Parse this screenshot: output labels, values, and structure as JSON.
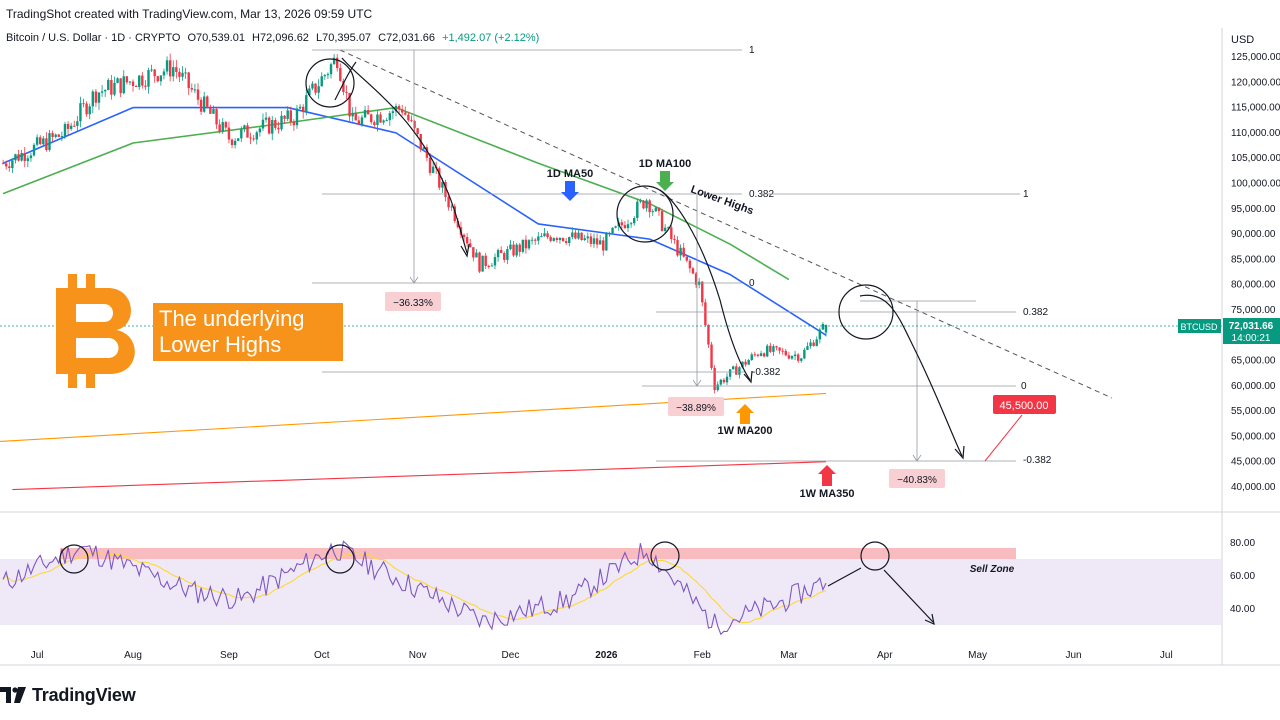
{
  "header": {
    "snapshot": "TradingShot created with TradingView.com, Mar 13, 2026 09:59 UTC",
    "symbol": "Bitcoin / U.S. Dollar · 1D · CRYPTO",
    "open": "O70,539.01",
    "high": "H72,096.62",
    "low": "L70,395.07",
    "close": "C72,031.66",
    "change": "+1,492.07 (+2.12%)"
  },
  "price_axis": {
    "currency": "USD",
    "ticks": [
      "125,000.00",
      "120,000.00",
      "115,000.00",
      "110,000.00",
      "105,000.00",
      "100,000.00",
      "95,000.00",
      "90,000.00",
      "85,000.00",
      "80,000.00",
      "75,000.00",
      "70,000.00",
      "65,000.00",
      "60,000.00",
      "55,000.00",
      "50,000.00",
      "45,000.00",
      "40,000.00"
    ],
    "current_symbol": "BTCUSD",
    "current_price": "72,031.66",
    "countdown": "14:00:21"
  },
  "rsi_axis": {
    "ticks": [
      "80.00",
      "60.00",
      "40.00"
    ]
  },
  "time_axis": {
    "ticks": [
      "Jul",
      "Aug",
      "Sep",
      "Oct",
      "Nov",
      "Dec",
      "2026",
      "Feb",
      "Mar",
      "Apr",
      "May",
      "Jun",
      "Jul"
    ]
  },
  "overlay": {
    "title_line1": "The underlying",
    "title_line2": "Lower Highs"
  },
  "annotations": {
    "ma50": "1D MA50",
    "ma100": "1D MA100",
    "lower_highs": "Lower Highs",
    "ma200w": "1W MA200",
    "ma350w": "1W MA350",
    "sell_zone": "Sell Zone",
    "drop1": "−36.33%",
    "drop2": "−38.89%",
    "drop3": "−40.83%",
    "target": "45,500.00",
    "fib1_top": "1",
    "fib1_mid": "0.382",
    "fib1_bot": "0",
    "fib2_top": "1",
    "fib2_bot": "-0.382",
    "fib3_top": "0.382",
    "fib3_zero": "0",
    "fib3_bot": "-0.382"
  },
  "colors": {
    "up": "#089981",
    "down": "#f23645",
    "ma50": "#2962ff",
    "ma100": "#4caf50",
    "ma200w": "#ff9800",
    "ma350w": "#f23645",
    "rsi": "#7e57c2",
    "rsi_ma": "#fdd835",
    "brand_orange": "#f7931a"
  },
  "chart_data": {
    "type": "candlestick",
    "title": "Bitcoin / U.S. Dollar · 1D · CRYPTO",
    "ylabel": "USD",
    "ylim": [
      37000,
      128000
    ],
    "x_range": [
      "2025-06-19",
      "2026-07-19"
    ],
    "series": [
      {
        "name": "close_approx",
        "x": [
          "2025-06-20",
          "2025-07-10",
          "2025-07-20",
          "2025-08-14",
          "2025-09-01",
          "2025-09-22",
          "2025-10-06",
          "2025-10-11",
          "2025-10-27",
          "2025-11-21",
          "2025-12-15",
          "2025-12-31",
          "2026-01-14",
          "2026-01-31",
          "2026-02-05",
          "2026-02-20",
          "2026-03-05",
          "2026-03-13"
        ],
        "values": [
          104000,
          110000,
          118000,
          123000,
          109000,
          113000,
          125000,
          112000,
          115000,
          84000,
          90000,
          88000,
          97000,
          80000,
          60000,
          67000,
          66000,
          72031.66
        ]
      },
      {
        "name": "1D MA50",
        "x": [
          "2025-06-20",
          "2025-08-01",
          "2025-09-20",
          "2025-10-25",
          "2025-12-10",
          "2026-01-15",
          "2026-02-10",
          "2026-03-13"
        ],
        "values": [
          104000,
          115000,
          115000,
          110000,
          92000,
          89000,
          82000,
          70000
        ]
      },
      {
        "name": "1D MA100",
        "x": [
          "2025-06-20",
          "2025-08-01",
          "2025-09-20",
          "2025-10-25",
          "2025-12-10",
          "2026-01-15",
          "2026-02-10",
          "2026-03-01"
        ],
        "values": [
          98000,
          108000,
          112000,
          115000,
          104000,
          96000,
          88000,
          81000
        ]
      },
      {
        "name": "1W MA200",
        "x": [
          "2025-06-19",
          "2026-03-13"
        ],
        "values": [
          49000,
          58500
        ]
      },
      {
        "name": "1W MA350",
        "x": [
          "2025-06-23",
          "2026-03-13"
        ],
        "values": [
          39500,
          45000
        ]
      },
      {
        "name": "RSI",
        "x": [
          "2025-07-15",
          "2025-10-05",
          "2025-11-22",
          "2026-01-14",
          "2026-02-05",
          "2026-03-13"
        ],
        "values": [
          76,
          76,
          32,
          75,
          30,
          56
        ]
      }
    ],
    "rsi_ylim": [
      20,
      90
    ]
  }
}
